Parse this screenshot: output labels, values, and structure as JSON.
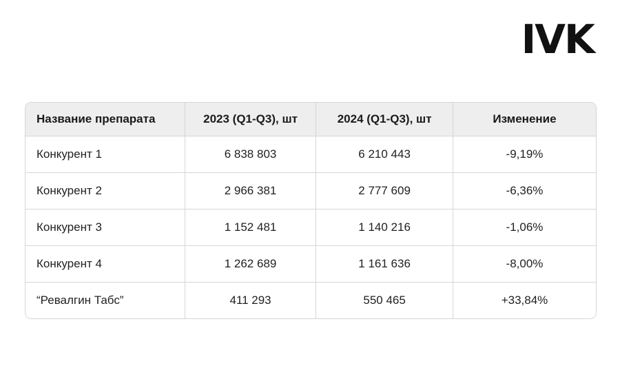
{
  "logo": {
    "text": "IVK"
  },
  "table": {
    "headers": [
      "Название препарата",
      "2023 (Q1-Q3), шт",
      "2024 (Q1-Q3), шт",
      "Изменение"
    ],
    "rows": [
      [
        "Конкурент 1",
        "6 838 803",
        "6 210 443",
        "-9,19%"
      ],
      [
        "Конкурент 2",
        "2 966 381",
        "2 777 609",
        "-6,36%"
      ],
      [
        "Конкурент 3",
        "1 152 481",
        "1 140 216",
        "-1,06%"
      ],
      [
        "Конкурент 4",
        "1 262 689",
        "1 161 636",
        "-8,00%"
      ],
      [
        "“Ревалгин Табс”",
        "411 293",
        "550 465",
        "+33,84%"
      ]
    ],
    "colors": {
      "header_bg": "#eeeeee",
      "border": "#d6d6d6",
      "text": "#1f1f1f"
    }
  }
}
